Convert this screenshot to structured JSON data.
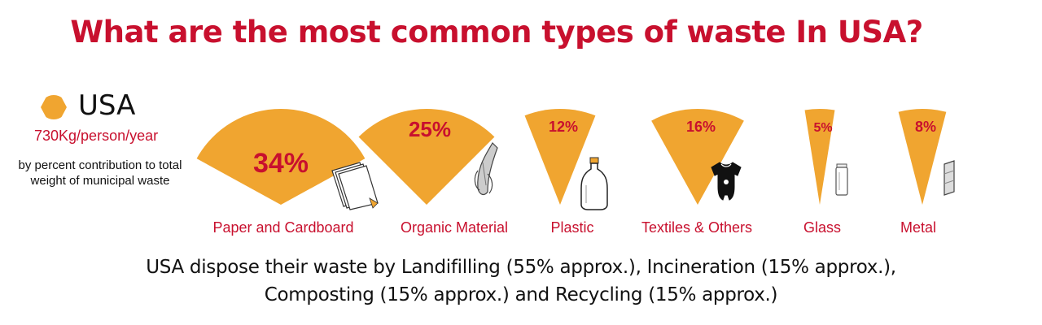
{
  "title": "What are the most common types of waste In USA?",
  "legend": {
    "country": "USA",
    "rate": "730Kg/person/year",
    "description": "by percent contribution to total weight of municipal waste"
  },
  "colors": {
    "accent": "#f0a530",
    "title": "#c8102e",
    "label": "#c8102e"
  },
  "chart_data": {
    "type": "pie",
    "title": "What are the most common types of waste In USA?",
    "unit": "%",
    "categories": [
      "Paper and Cardboard",
      "Organic Material",
      "Plastic",
      "Textiles & Others",
      "Glass",
      "Metal"
    ],
    "values": [
      34,
      25,
      12,
      16,
      5,
      8
    ],
    "value_labels": [
      "34%",
      "25%",
      "12%",
      "16%",
      "5%",
      "8%"
    ],
    "icons": [
      "paper-stack-icon",
      "banana-peel-icon",
      "plastic-bottle-icon",
      "onesie-icon",
      "glass-jar-icon",
      "metal-can-icon"
    ]
  },
  "footer": {
    "line1": "USA dispose their waste by Landifilling (55% approx.), Incineration (15% approx.),",
    "line2": "Composting (15% approx.) and Recycling (15% approx.)"
  }
}
